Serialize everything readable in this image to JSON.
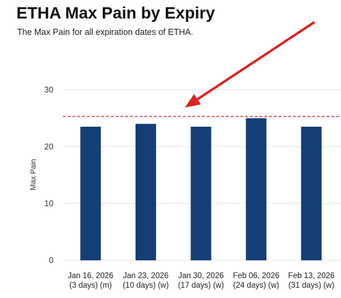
{
  "title": "ETHA Max Pain by Expiry",
  "subtitle": "The Max Pain for all expiration dates of ETHA.",
  "chart_data": {
    "type": "bar",
    "categories": [
      [
        "Jan 16, 2026",
        "(3 days) (m)"
      ],
      [
        "Jan 23, 2026",
        "(10 days) (w)"
      ],
      [
        "Jan 30, 2026",
        "(17 days) (w)"
      ],
      [
        "Feb 06, 2026",
        "(24 days) (w)"
      ],
      [
        "Feb 13, 2026",
        "(31 days) (w)"
      ]
    ],
    "values": [
      23.5,
      24.0,
      23.5,
      25.0,
      23.5
    ],
    "ylabel": "Max Pain",
    "ylim": [
      0,
      30
    ],
    "yticks": [
      0,
      10,
      20,
      30
    ],
    "grid": true,
    "reference_line": {
      "value": 25.3,
      "style": "dashed"
    },
    "annotation": "red arrow pointing at the dashed reference line"
  },
  "colors": {
    "bar": "#143f76",
    "reference_line": "#e01818",
    "arrow": "#e02020",
    "grid": "#e6e6e6"
  }
}
